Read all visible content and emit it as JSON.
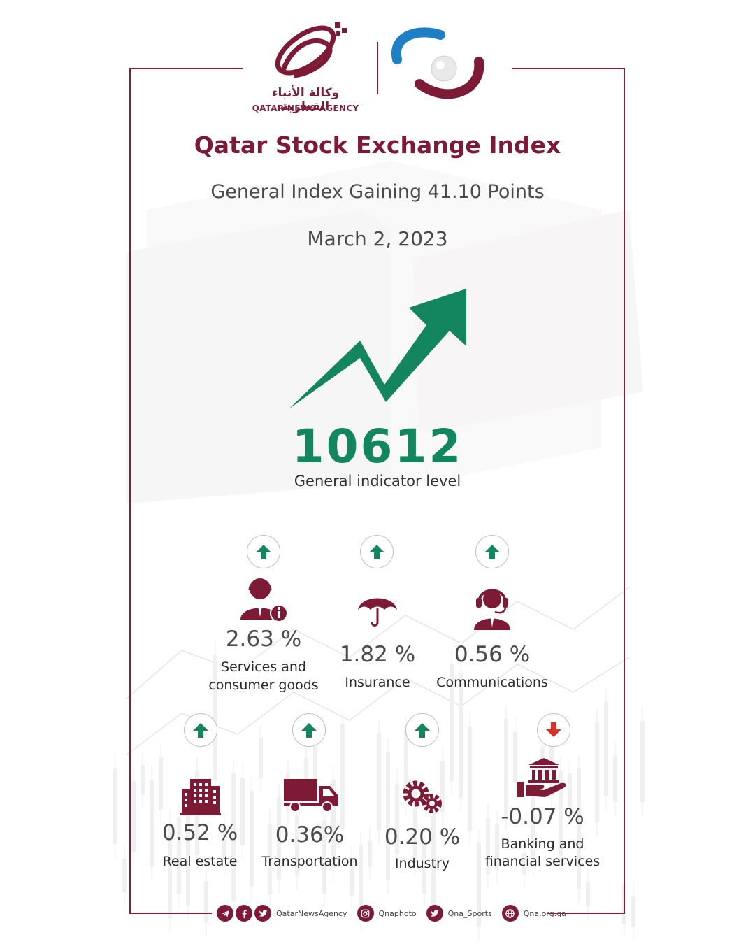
{
  "brand": {
    "agency_ar": "وكالة الأنباء القطرية",
    "agency_en": "QATAR NEWS AGENCY",
    "primary_color": "#7d1a36",
    "up_color": "#13865f",
    "down_color": "#d9302a"
  },
  "header": {
    "title": "Qatar Stock Exchange Index",
    "subtitle": "General Index Gaining 41.10 Points",
    "date": "March 2, 2023"
  },
  "index": {
    "value": "10612",
    "label": "General indicator level",
    "trend_icon": "up-trend-arrow-icon"
  },
  "sectors": [
    {
      "name": "Services and consumer goods",
      "name_l1": "Services and",
      "name_l2": "consumer goods",
      "change": "2.63 %",
      "direction": "up",
      "icon": "customer-service-icon"
    },
    {
      "name": "Insurance",
      "change": "1.82 %",
      "direction": "up",
      "icon": "umbrella-icon"
    },
    {
      "name": "Communications",
      "change": "0.56 %",
      "direction": "up",
      "icon": "headset-operator-icon"
    },
    {
      "name": "Real estate",
      "change": "0.52 %",
      "direction": "up",
      "icon": "building-icon"
    },
    {
      "name": "Transportation",
      "change": "0.36%",
      "direction": "up",
      "icon": "truck-icon"
    },
    {
      "name": "Industry",
      "change": "0.20 %",
      "direction": "up",
      "icon": "gears-icon"
    },
    {
      "name": "Banking and financial services",
      "name_l1": "Banking and",
      "name_l2": "financial services",
      "change": "-0.07 %",
      "direction": "down",
      "icon": "bank-hand-icon"
    }
  ],
  "footer": {
    "social_handle": "QatarNewsAgency",
    "instagram": "Qnaphoto",
    "twitter_sports": "Qna_Sports",
    "website": "Qna.org.qa"
  }
}
